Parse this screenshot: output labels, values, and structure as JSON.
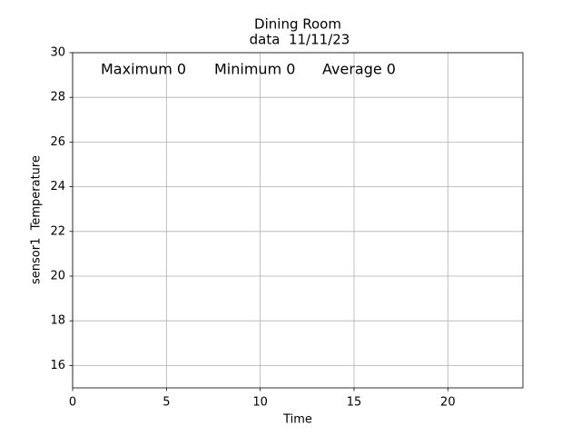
{
  "chart_data": {
    "type": "line",
    "title": "Dining Room",
    "subtitle": "data  11/11/23",
    "annotations": [
      "Maximum 0",
      "Minimum 0",
      "Average 0"
    ],
    "x_label": "Time",
    "y_label": "sensor1  Temperature",
    "series": [],
    "xlim": [
      0,
      24
    ],
    "xticks": [
      0,
      5,
      10,
      15,
      20
    ],
    "ylim": [
      15,
      30
    ],
    "yticks": [
      16,
      18,
      20,
      22,
      24,
      26,
      28,
      30
    ],
    "grid": true
  }
}
